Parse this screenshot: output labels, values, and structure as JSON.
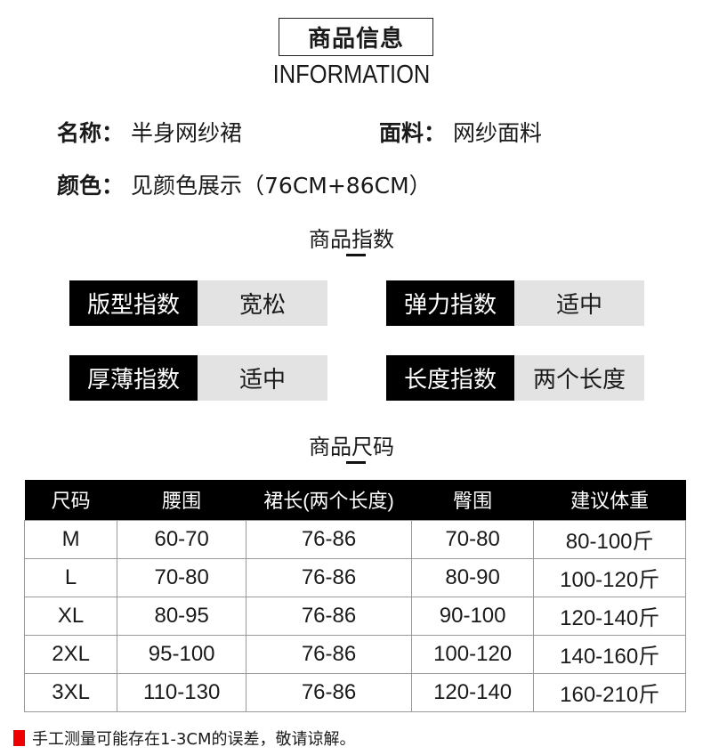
{
  "header": {
    "title": "商品信息",
    "subtitle": "INFORMATION"
  },
  "details": [
    {
      "label": "名称：",
      "value": "半身网纱裙"
    },
    {
      "label": "面料：",
      "value": "网纱面料"
    },
    {
      "label": "颜色：",
      "value": "见颜色展示（76CM+86CM）"
    }
  ],
  "index_section": {
    "title": "商品指数",
    "items": [
      {
        "label": "版型指数",
        "value": "宽松"
      },
      {
        "label": "弹力指数",
        "value": "适中"
      },
      {
        "label": "厚薄指数",
        "value": "适中"
      },
      {
        "label": "长度指数",
        "value": "两个长度"
      }
    ]
  },
  "size_section": {
    "title": "商品尺码",
    "columns": [
      "尺码",
      "腰围",
      "裙长(两个长度)",
      "臀围",
      "建议体重"
    ],
    "rows": [
      [
        "M",
        "60-70",
        "76-86",
        "70-80",
        "80-100斤"
      ],
      [
        "L",
        "70-80",
        "76-86",
        "80-90",
        "100-120斤"
      ],
      [
        "XL",
        "80-95",
        "76-86",
        "90-100",
        "120-140斤"
      ],
      [
        "2XL",
        "95-100",
        "76-86",
        "100-120",
        "140-160斤"
      ],
      [
        "3XL",
        "110-130",
        "76-86",
        "120-140",
        "160-210斤"
      ]
    ]
  },
  "note": "手工测量可能存在1-3CM的误差，敬请谅解。",
  "colors": {
    "accent": "#e00000",
    "label_bg": "#000000",
    "value_bg": "#e3e3e3"
  }
}
